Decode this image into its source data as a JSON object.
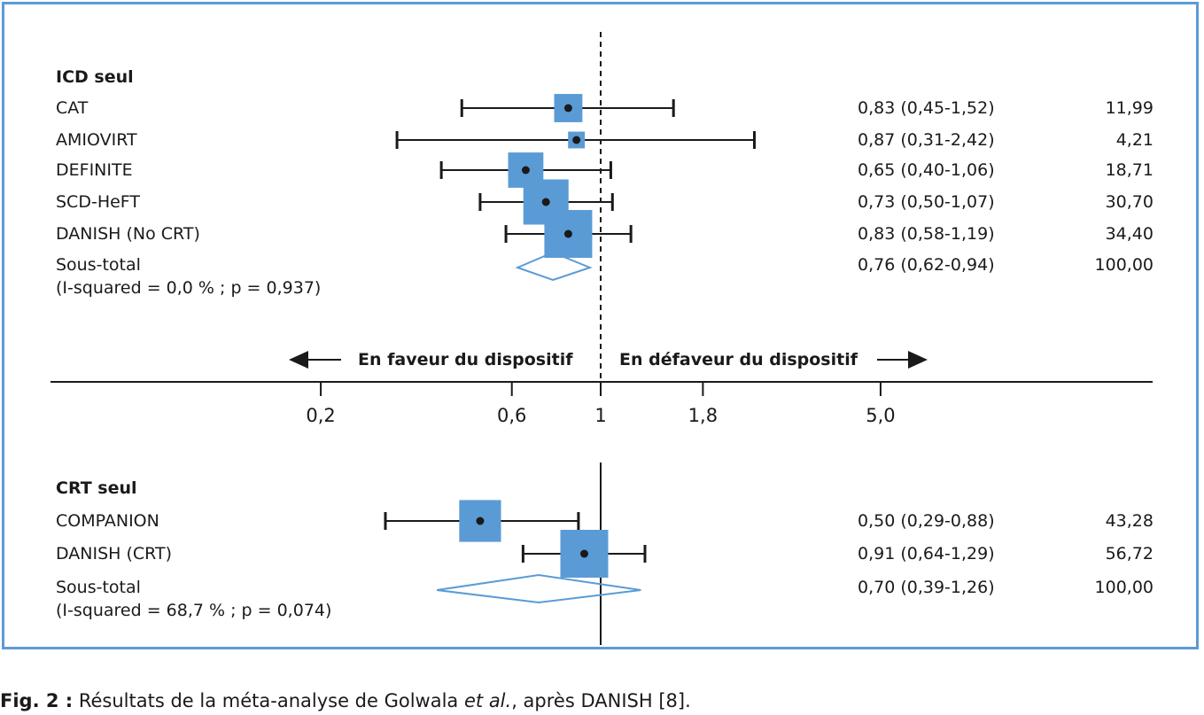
{
  "chart_data": {
    "type": "forest",
    "x_scale": "log",
    "null_value": 1,
    "x_ticks": [
      "0,2",
      "0,6",
      "1",
      "1,8",
      "5,0"
    ],
    "tick_values": [
      0.2,
      0.6,
      1,
      1.8,
      5.0
    ],
    "favor_left": "En faveur du dispositif",
    "favor_right": "En défaveur du dispositif",
    "groups": [
      {
        "name": "ICD seul",
        "studies": [
          {
            "label": "CAT",
            "or": 0.83,
            "lo": 0.45,
            "hi": 1.52,
            "ci_text": "0,83 (0,45-1,52)",
            "weight": 11.99,
            "weight_text": "11,99"
          },
          {
            "label": "AMIOVIRT",
            "or": 0.87,
            "lo": 0.31,
            "hi": 2.42,
            "ci_text": "0,87 (0,31-2,42)",
            "weight": 4.21,
            "weight_text": "4,21"
          },
          {
            "label": "DEFINITE",
            "or": 0.65,
            "lo": 0.4,
            "hi": 1.06,
            "ci_text": "0,65 (0,40-1,06)",
            "weight": 18.71,
            "weight_text": "18,71"
          },
          {
            "label": "SCD-HeFT",
            "or": 0.73,
            "lo": 0.5,
            "hi": 1.07,
            "ci_text": "0,73 (0,50-1,07)",
            "weight": 30.7,
            "weight_text": "30,70"
          },
          {
            "label": "DANISH (No CRT)",
            "or": 0.83,
            "lo": 0.58,
            "hi": 1.19,
            "ci_text": "0,83 (0,58-1,19)",
            "weight": 34.4,
            "weight_text": "34,40"
          }
        ],
        "subtotal": {
          "label": "Sous-total",
          "heterogeneity": "(I-squared = 0,0 % ; p = 0,937)",
          "or": 0.76,
          "lo": 0.62,
          "hi": 0.94,
          "ci_text": "0,76 (0,62-0,94)",
          "weight_text": "100,00"
        }
      },
      {
        "name": "CRT seul",
        "studies": [
          {
            "label": "COMPANION",
            "or": 0.5,
            "lo": 0.29,
            "hi": 0.88,
            "ci_text": "0,50 (0,29-0,88)",
            "weight": 43.28,
            "weight_text": "43,28"
          },
          {
            "label": "DANISH (CRT)",
            "or": 0.91,
            "lo": 0.64,
            "hi": 1.29,
            "ci_text": "0,91 (0,64-1,29)",
            "weight": 56.72,
            "weight_text": "56,72"
          }
        ],
        "subtotal": {
          "label": "Sous-total",
          "heterogeneity": "(I-squared = 68,7 % ; p = 0,074)",
          "or": 0.7,
          "lo": 0.39,
          "hi": 1.26,
          "ci_text": "0,70 (0,39-1,26)",
          "weight_text": "100,00"
        }
      }
    ]
  },
  "caption": {
    "prefix": "Fig. 2 :",
    "text_before": " Résultats de la méta-analyse de Golwala ",
    "italic": "et al.",
    "text_after": ", après DANISH [8]."
  },
  "colors": {
    "frame": "#5b9bd5",
    "box": "#5b9bd5",
    "diamond": "#5b9bd5",
    "ink": "#1a1a1a"
  }
}
